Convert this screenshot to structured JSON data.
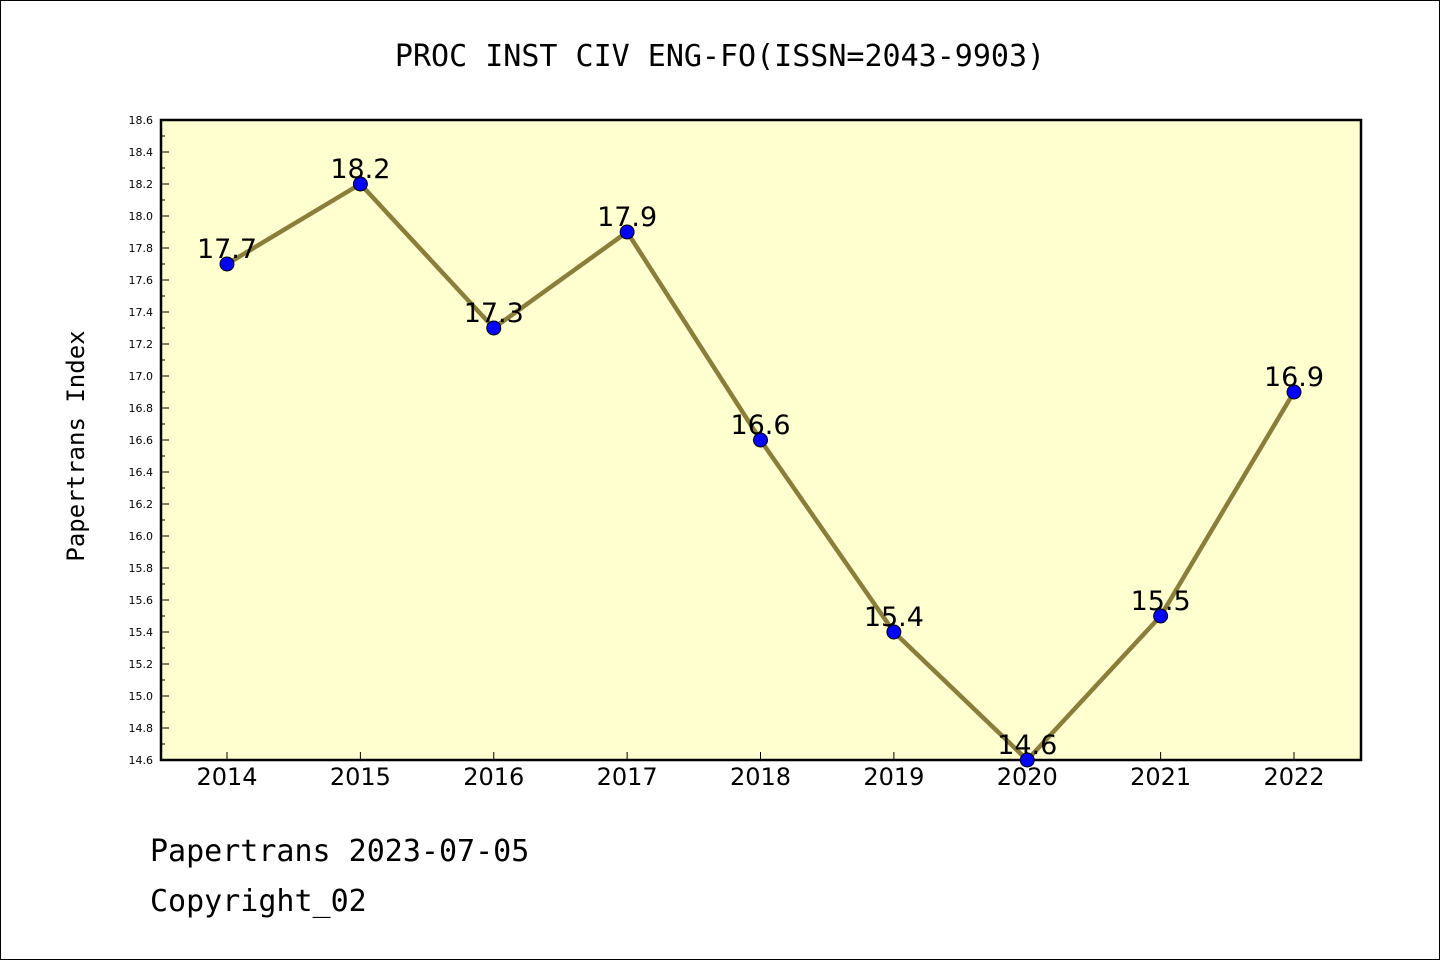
{
  "footer": {
    "line1": "Papertrans 2023-07-05",
    "line2": "Copyright_02"
  },
  "chart_data": {
    "type": "line",
    "title": "PROC INST CIV ENG-FO(ISSN=2043-9903)",
    "xlabel": "",
    "ylabel": "Papertrans Index",
    "categories": [
      "2014",
      "2015",
      "2016",
      "2017",
      "2018",
      "2019",
      "2020",
      "2021",
      "2022"
    ],
    "series": [
      {
        "values": [
          17.7,
          18.2,
          17.3,
          17.9,
          16.6,
          15.4,
          14.6,
          15.5,
          16.9
        ],
        "data_labels": [
          "17.7",
          "18.2",
          "17.3",
          "17.9",
          "16.6",
          "15.4",
          "14.6",
          "15.5",
          "16.9"
        ],
        "line_color": "#8b7d3a",
        "marker_color": "#0000ff"
      }
    ],
    "ylim": [
      14.6,
      18.6
    ],
    "yticks": [
      "14.6",
      "14.8",
      "15.0",
      "15.2",
      "15.4",
      "15.6",
      "15.8",
      "16.0",
      "16.2",
      "16.4",
      "16.6",
      "16.8",
      "17.0",
      "17.2",
      "17.4",
      "17.6",
      "17.8",
      "18.0",
      "18.2",
      "18.4",
      "18.6"
    ],
    "plot_background": "#ffffd0",
    "grid": false,
    "legend": "none"
  }
}
